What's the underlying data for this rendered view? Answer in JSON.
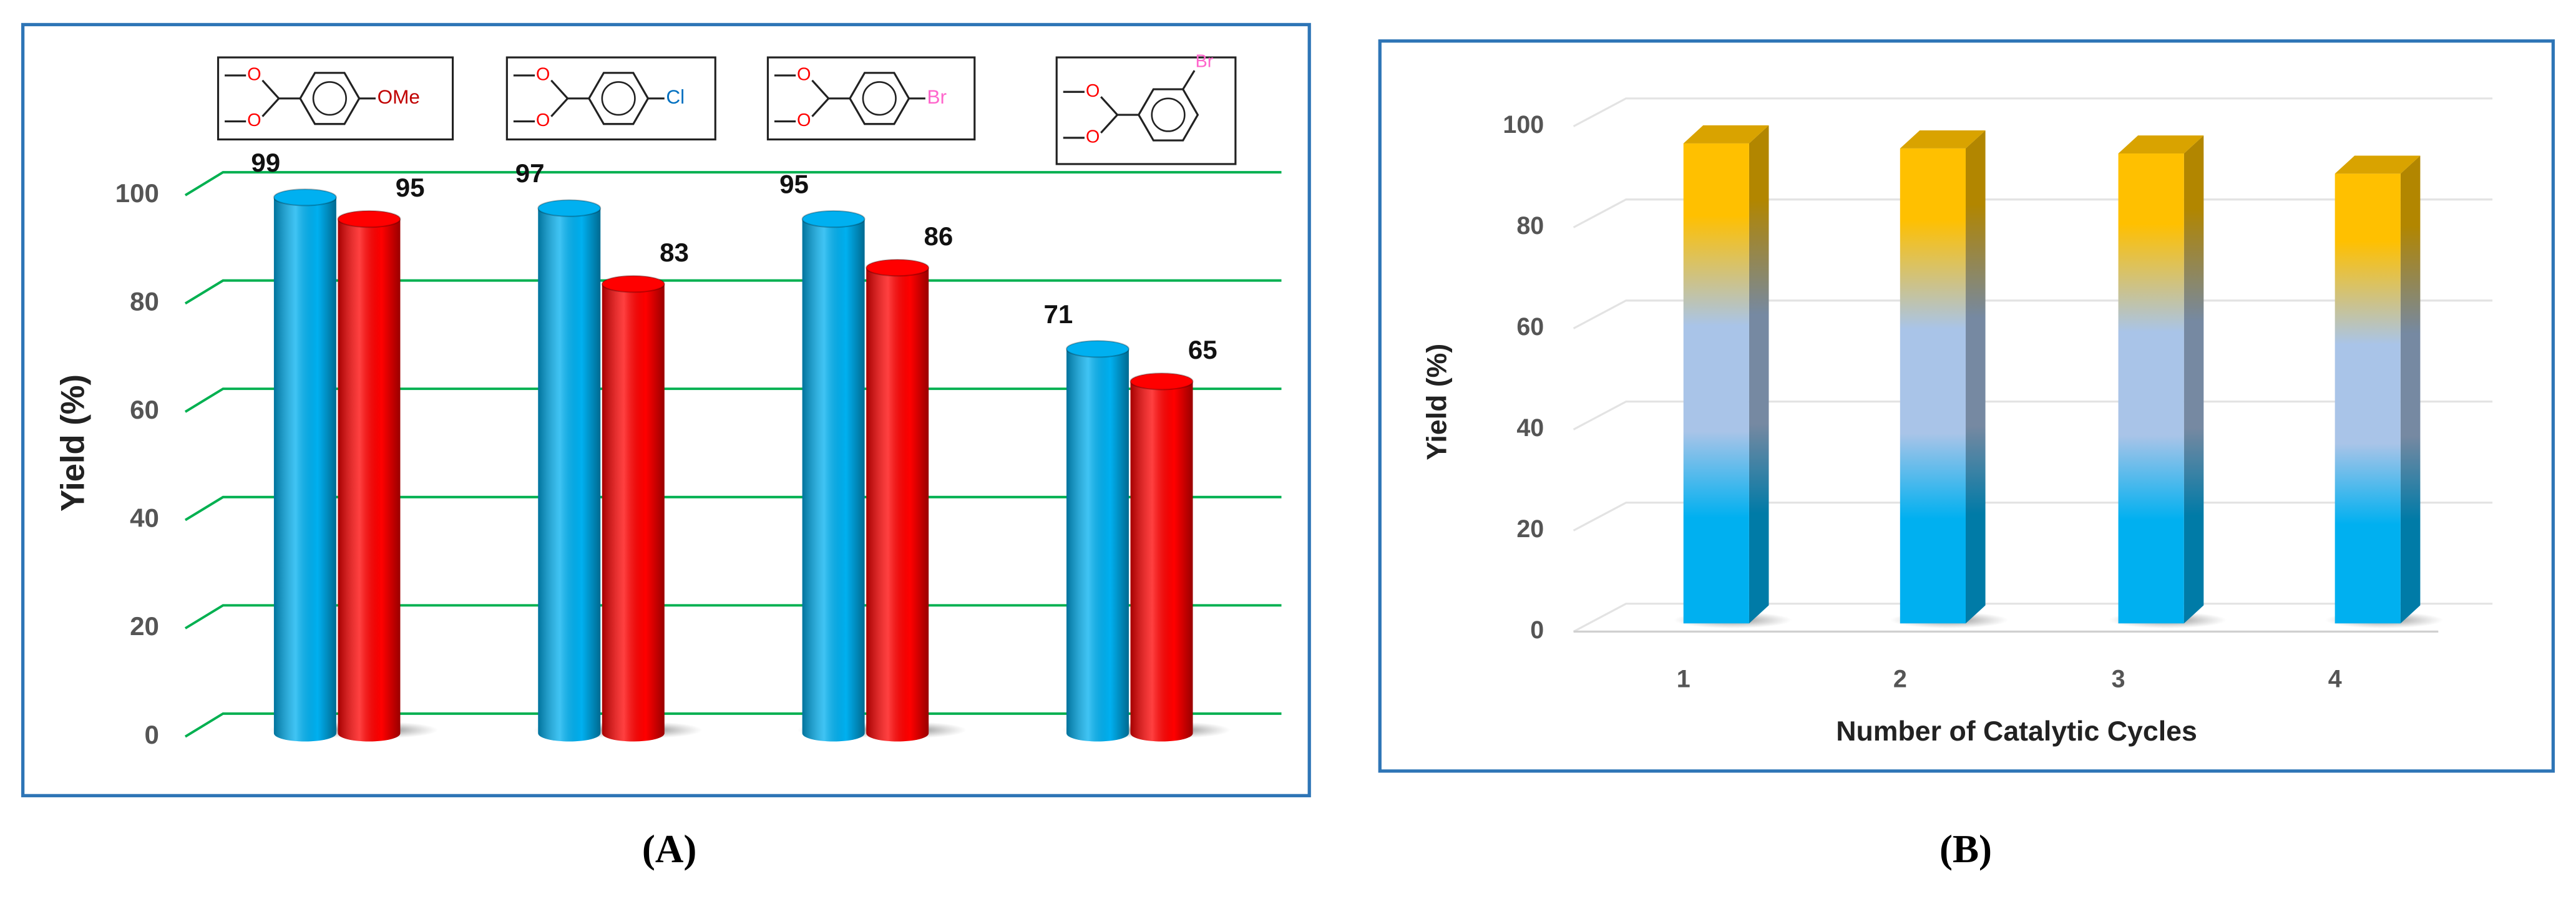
{
  "chart_data": [
    {
      "type": "bar",
      "caption": "(A)",
      "ylabel": "Yield (%)",
      "categories": [
        null,
        null,
        null,
        null
      ],
      "structures": [
        [
          "O",
          "O",
          "OMe"
        ],
        [
          "O",
          "O",
          "Cl"
        ],
        [
          "O",
          "O",
          "Br"
        ],
        [
          "O",
          "O",
          "Br"
        ]
      ],
      "substituent_colors": [
        "#c00000",
        "#0070c0",
        "#ff66cc",
        "#ff66cc"
      ],
      "series": [
        {
          "color": "#00b0f0",
          "values": [
            99,
            97,
            95,
            71
          ]
        },
        {
          "color": "#ff0000",
          "values": [
            95,
            83,
            86,
            65
          ]
        }
      ],
      "ylim": [
        0,
        100
      ],
      "yticks": [
        0,
        20,
        40,
        60,
        80,
        100
      ],
      "grid": true,
      "grid_color": "#00b050",
      "show_values": true
    },
    {
      "type": "bar3d",
      "caption": "(B)",
      "xlabel": "Number of Catalytic Cycles",
      "ylabel": "Yield (%)",
      "categories": [
        "1",
        "2",
        "3",
        "4"
      ],
      "values": [
        95,
        94,
        93,
        89
      ],
      "colors": [
        "#00b0f0",
        "#a9c4e8",
        "#ffc000"
      ],
      "ylim": [
        0,
        100
      ],
      "yticks": [
        0,
        20,
        40,
        60,
        80,
        100
      ],
      "grid": true,
      "grid_color": "#e3e3e3"
    }
  ]
}
